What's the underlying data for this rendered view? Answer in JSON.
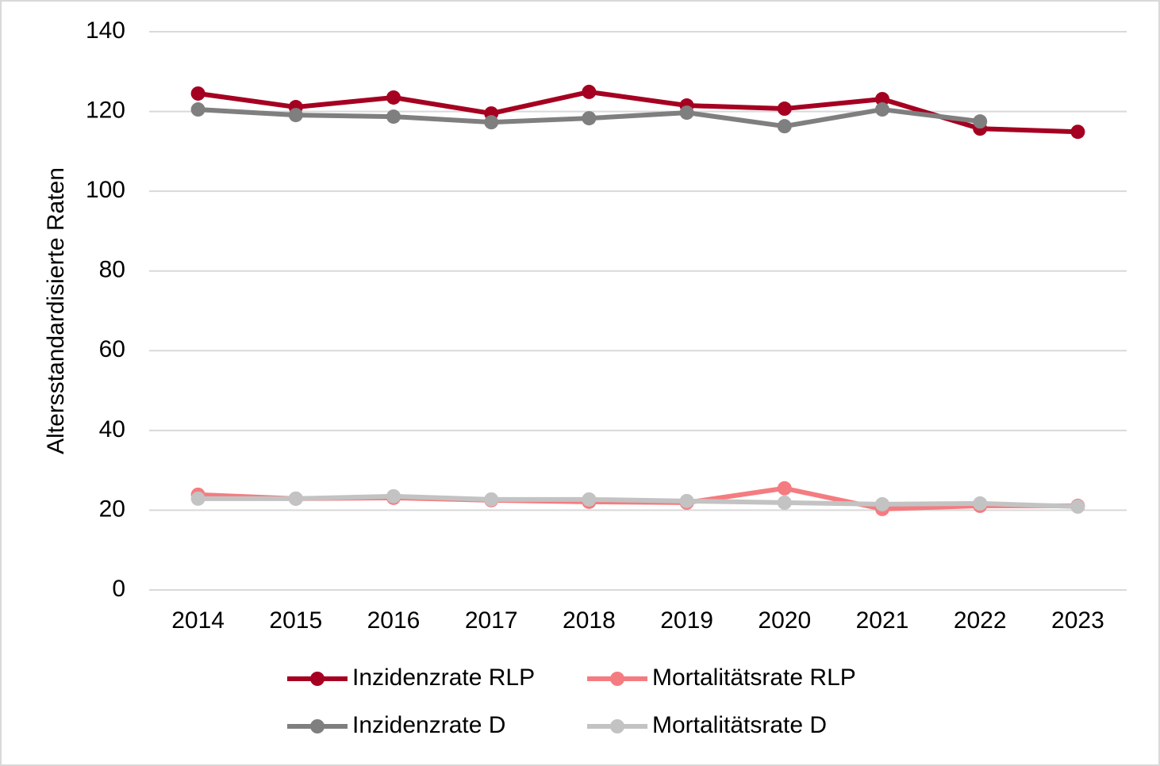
{
  "chart_data": {
    "type": "line",
    "y_label": "Altersstandardisierte Raten",
    "categories": [
      "2014",
      "2015",
      "2016",
      "2017",
      "2018",
      "2019",
      "2020",
      "2021",
      "2022",
      "2023"
    ],
    "series": [
      {
        "name": "Inzidenzrate RLP",
        "color": "#a50021",
        "values": [
          124.5,
          121.1,
          123.5,
          119.5,
          124.9,
          121.5,
          120.7,
          123.1,
          115.7,
          114.9
        ]
      },
      {
        "name": "Mortalitätsrate RLP",
        "color": "#f47c80",
        "values": [
          23.9,
          22.9,
          23.1,
          22.5,
          22.1,
          21.9,
          25.5,
          20.3,
          21.1,
          21.1
        ]
      },
      {
        "name": "Inzidenzrate D",
        "color": "#7f7f7f",
        "values": [
          120.5,
          119.1,
          118.7,
          117.3,
          118.3,
          119.7,
          116.3,
          120.5,
          117.5,
          null
        ]
      },
      {
        "name": "Mortalitätsrate D",
        "color": "#c3c3c3",
        "values": [
          22.9,
          22.9,
          23.5,
          22.7,
          22.7,
          22.3,
          21.9,
          21.5,
          21.7,
          20.9
        ]
      }
    ],
    "ylim": [
      0,
      140
    ],
    "yticks": [
      0,
      20,
      40,
      60,
      80,
      100,
      120,
      140
    ],
    "grid": true
  }
}
